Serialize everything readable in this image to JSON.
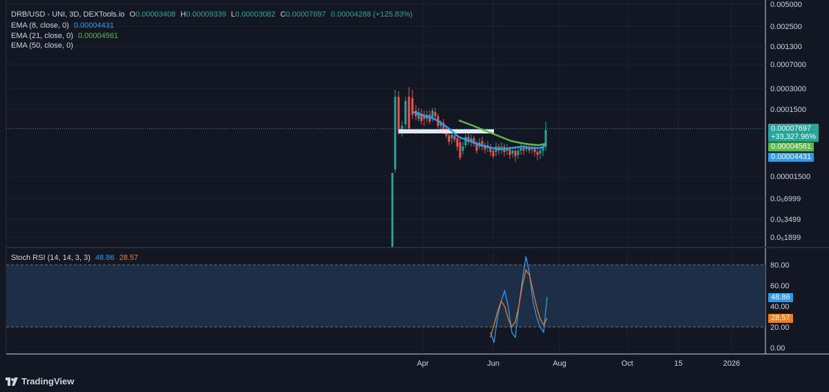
{
  "header": {
    "symbol": "DRB/USD - UNI, 3D, DEXTools.io",
    "open_label": "O",
    "open": "0.00003408",
    "high_label": "H",
    "high": "0.00009339",
    "low_label": "L",
    "low": "0.00003082",
    "close_label": "C",
    "close": "0.00007697",
    "change": "0.00004288 (+125.83%)"
  },
  "indicators": [
    {
      "label": "EMA (8, close, 0)",
      "value": "0.00004431",
      "color": "#2d9cf0"
    },
    {
      "label": "EMA (21, close, 0)",
      "value": "0.00004561",
      "color": "#5fb84a"
    },
    {
      "label": "EMA (50, close, 0)",
      "value": "",
      "color": "#d1d4dc"
    }
  ],
  "stoch": {
    "label": "Stoch RSI (14, 14, 3, 3)",
    "k": "48.86",
    "d": "28.57",
    "k_color": "#2d9cf0",
    "d_color": "#f57c1f"
  },
  "price_axis": [
    "0.005000",
    "0.002500",
    "0.001300",
    "0.0007000",
    "0.0003000",
    "0.0001500",
    "0.00001500",
    "0.0₅6999",
    "0.0₅3499",
    "0.0₅1899"
  ],
  "price_tags": {
    "last": "0.00007697",
    "pct": "+33,327.96%",
    "ema21": "0.00004561",
    "ema8": "0.00004431"
  },
  "stoch_axis": [
    "80.00",
    "60.00",
    "40.00",
    "20.00",
    "0.00"
  ],
  "stoch_tags": {
    "k": "48.86",
    "d": "28.57"
  },
  "time_axis": [
    "Apr",
    "Jun",
    "Aug",
    "Oct",
    "15",
    "2026"
  ],
  "brand": "TradingView",
  "colors": {
    "up": "#26a69a",
    "down": "#ef5350",
    "ema8": "#2d9cf0",
    "ema21": "#5fb84a",
    "band": "#1e2f45"
  },
  "chart_data": [
    {
      "type": "candlestick",
      "title": "DRB/USD - UNI, 3D, DEXTools.io",
      "y_scale": "log",
      "x_ticks": [
        "Apr",
        "Jun",
        "Aug",
        "Oct",
        "15",
        "2026"
      ],
      "last_price": 7.697e-05,
      "series": [
        {
          "name": "EMA (8, close, 0)",
          "last": 4.431e-05
        },
        {
          "name": "EMA (21, close, 0)",
          "last": 4.561e-05
        },
        {
          "name": "EMA (50, close, 0)"
        }
      ]
    },
    {
      "type": "line",
      "title": "Stoch RSI (14, 14, 3, 3)",
      "ylim": [
        0,
        100
      ],
      "bands": [
        20,
        80
      ],
      "series": [
        {
          "name": "K",
          "last": 48.86,
          "values": [
            15,
            5,
            30,
            45,
            55,
            40,
            15,
            10,
            40,
            65,
            88,
            72,
            45,
            30,
            20,
            15,
            48.86
          ]
        },
        {
          "name": "D",
          "last": 28.57,
          "values": [
            10,
            22,
            35,
            45,
            40,
            28,
            20,
            25,
            40,
            60,
            75,
            70,
            55,
            40,
            28,
            22,
            28.57
          ]
        }
      ]
    }
  ]
}
